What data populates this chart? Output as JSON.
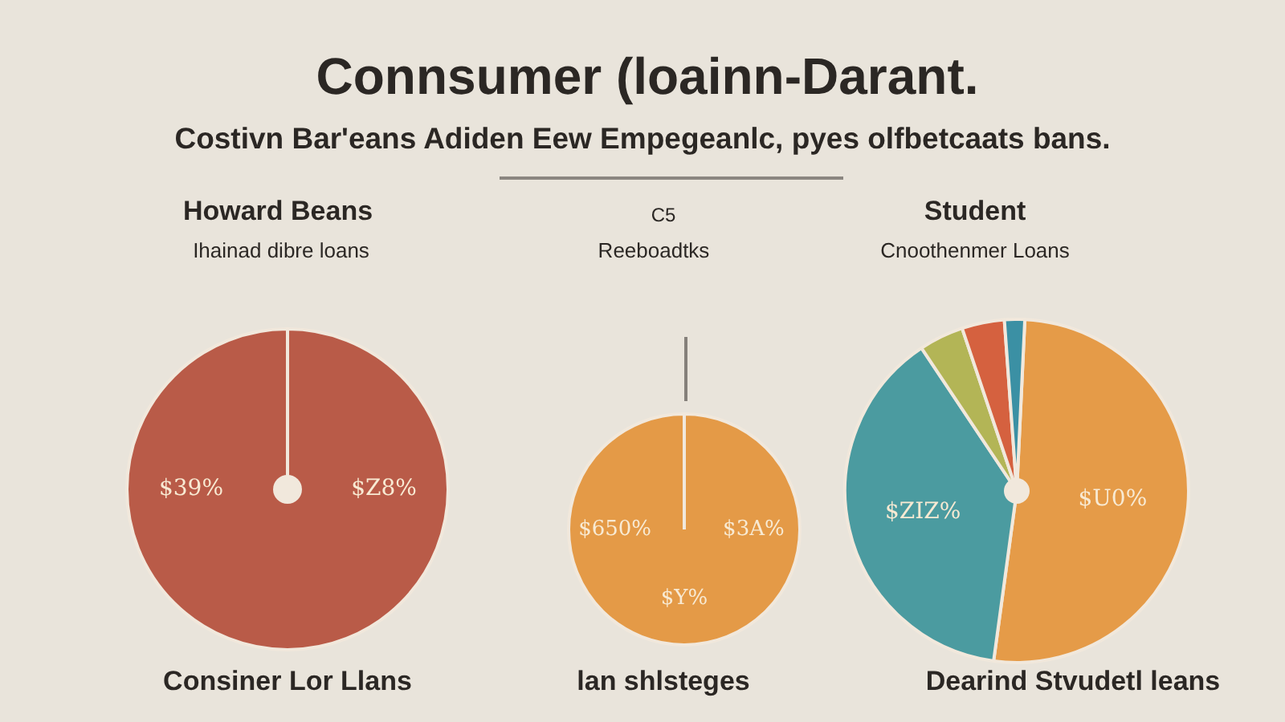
{
  "chart_data": [
    {
      "type": "other",
      "title": "Connsumer (loainn-Darant.",
      "subtitle": "Costivn Bar'eans Adiden Eew Empegeanlc, pyes olfbetcaats bans."
    },
    {
      "type": "pie",
      "title": "Howard Beans",
      "subtitle": "Ihainad dibre loans",
      "categories": [
        null
      ],
      "values": [
        100
      ],
      "colors": [
        "#b95b48"
      ],
      "annotations": [
        "Consiner Lor Llans",
        "$39%",
        "$Z8%"
      ]
    },
    {
      "type": "pie",
      "title": "C5",
      "subtitle": "Reeboadtks",
      "categories": [
        null
      ],
      "values": [
        100
      ],
      "colors": [
        "#e49a47"
      ],
      "annotations": [
        "lan shlsteges",
        "$650%",
        "$3A%",
        "$Y%"
      ]
    },
    {
      "type": "pie",
      "title": "Student",
      "subtitle": "Cnoothenmer Loans",
      "categories": [
        null,
        null,
        null,
        null,
        null
      ],
      "values": [
        51.4,
        38.5,
        4.2,
        4.0,
        1.9
      ],
      "colors": [
        "#e59b48",
        "#4b9ba0",
        "#b3b556",
        "#d5613f",
        "#3b90a4"
      ],
      "value_labels": [
        "$U0%",
        "$ZIZ%",
        null,
        null,
        null
      ],
      "annotations": [
        "Dearind Stvudetl leans"
      ]
    }
  ]
}
